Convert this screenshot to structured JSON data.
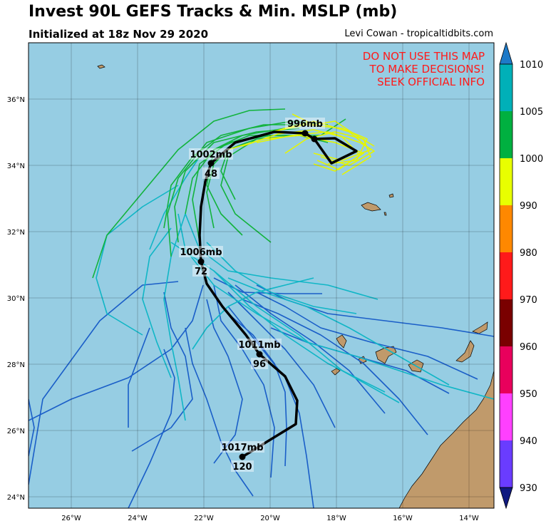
{
  "title": "Invest 90L GEFS Tracks & Min. MSLP (mb)",
  "subtitle": "Initialized at 18z Nov 29 2020",
  "credit": "Levi Cowan - tropicaltidbits.com",
  "warning": [
    "DO NOT USE THIS MAP",
    "TO MAKE DECISIONS!",
    "SEEK OFFICIAL INFO"
  ],
  "colors": {
    "ocean": "#96cde3",
    "land": "#c09a6b",
    "mean_track": "#000000",
    "warning_text": "#ff1a1a"
  },
  "axes": {
    "lon_ticks": [
      "26°W",
      "24°W",
      "22°W",
      "20°W",
      "18°W",
      "16°W",
      "14°W"
    ],
    "lat_ticks": [
      "36°N",
      "34°N",
      "32°N",
      "30°N",
      "28°N",
      "26°N",
      "24°N"
    ],
    "lon_range": [
      -27.3,
      -13.2
    ],
    "lat_range": [
      23.7,
      37.7
    ],
    "grid": true
  },
  "colorbar": {
    "ticks": [
      "1010",
      "1005",
      "1000",
      "990",
      "980",
      "970",
      "960",
      "950",
      "940",
      "930"
    ],
    "bands": [
      "#00b0b8",
      "#00b040",
      "#e8ff00",
      "#ff8800",
      "#ff1a1a",
      "#7a0000",
      "#e8005c",
      "#ff40ff",
      "#6a3cff"
    ],
    "top_cap": "#1e7ac8",
    "bottom_cap": "#101a80"
  },
  "mean_track_points": [
    {
      "label": "1017mb",
      "hour": "120"
    },
    {
      "label": "1011mb",
      "hour": "96"
    },
    {
      "label": "1006mb",
      "hour": "72"
    },
    {
      "label": "1002mb",
      "hour": "48"
    },
    {
      "label": "996mb",
      "hour": ""
    }
  ]
}
